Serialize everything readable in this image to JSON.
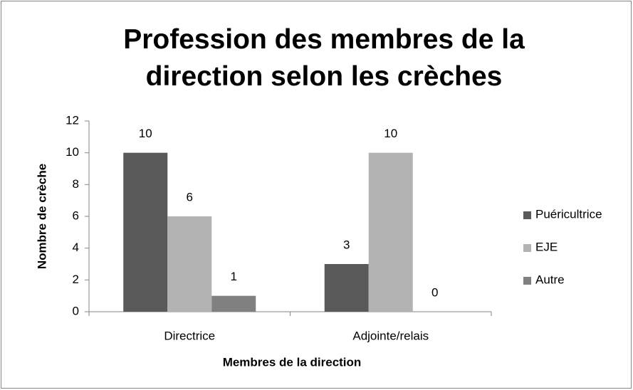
{
  "chart_data": {
    "type": "bar",
    "title": "Profession des membres de la direction selon les crèches",
    "xlabel": "Membres de la direction",
    "ylabel": "Nombre de crèche",
    "categories": [
      "Directrice",
      "Adjointe/relais"
    ],
    "series": [
      {
        "name": "Puéricultrice",
        "color": "#595959",
        "values": [
          10,
          3
        ]
      },
      {
        "name": "EJE",
        "color": "#b3b3b3",
        "values": [
          6,
          10
        ]
      },
      {
        "name": "Autre",
        "color": "#808080",
        "values": [
          1,
          0
        ]
      }
    ],
    "ylim": [
      0,
      12
    ],
    "yticks": [
      0,
      2,
      4,
      6,
      8,
      10,
      12
    ],
    "legend": "right",
    "grid": false
  }
}
